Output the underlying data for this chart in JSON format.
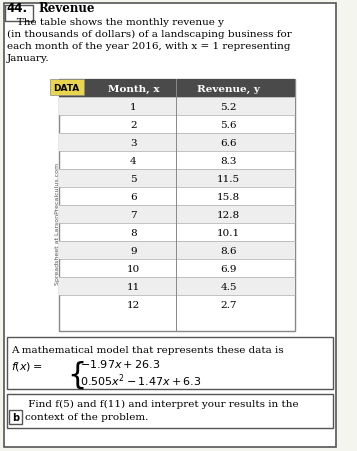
{
  "problem_number": "44.",
  "title_bold": "Revenue",
  "title_text": "  The table shows the monthly revenue y\n(in thousands of dollars) of a landscaping business for\neach month of the year 2016, with x = 1 representing\nJanuary.",
  "table_header": [
    "Month, x",
    "Revenue, y"
  ],
  "months": [
    1,
    2,
    3,
    4,
    5,
    6,
    7,
    8,
    9,
    10,
    11,
    12
  ],
  "revenues": [
    5.2,
    5.6,
    6.6,
    8.3,
    11.5,
    15.8,
    12.8,
    10.1,
    8.6,
    6.9,
    4.5,
    2.7
  ],
  "model_text": "A mathematical model that represents these data is",
  "formula_line1": "− 1.97x + 26.3",
  "formula_line2": "0.505x² − 1.47x + 6.3",
  "formula_condition1": "",
  "part_b_label": "b",
  "part_b_text": " Find f(5) and f(11) and interpret your results in the\ncontext of the problem.",
  "spreadsheet_text": "Spreadsheet at LarsonPrecalculus.com",
  "bg_color": "#f5f5f0",
  "header_bg": "#4a4a4a",
  "header_fg": "#ffffff",
  "data_label_bg": "#e8d44d",
  "row_alt_color": "#e8e8e8",
  "border_color": "#888888"
}
